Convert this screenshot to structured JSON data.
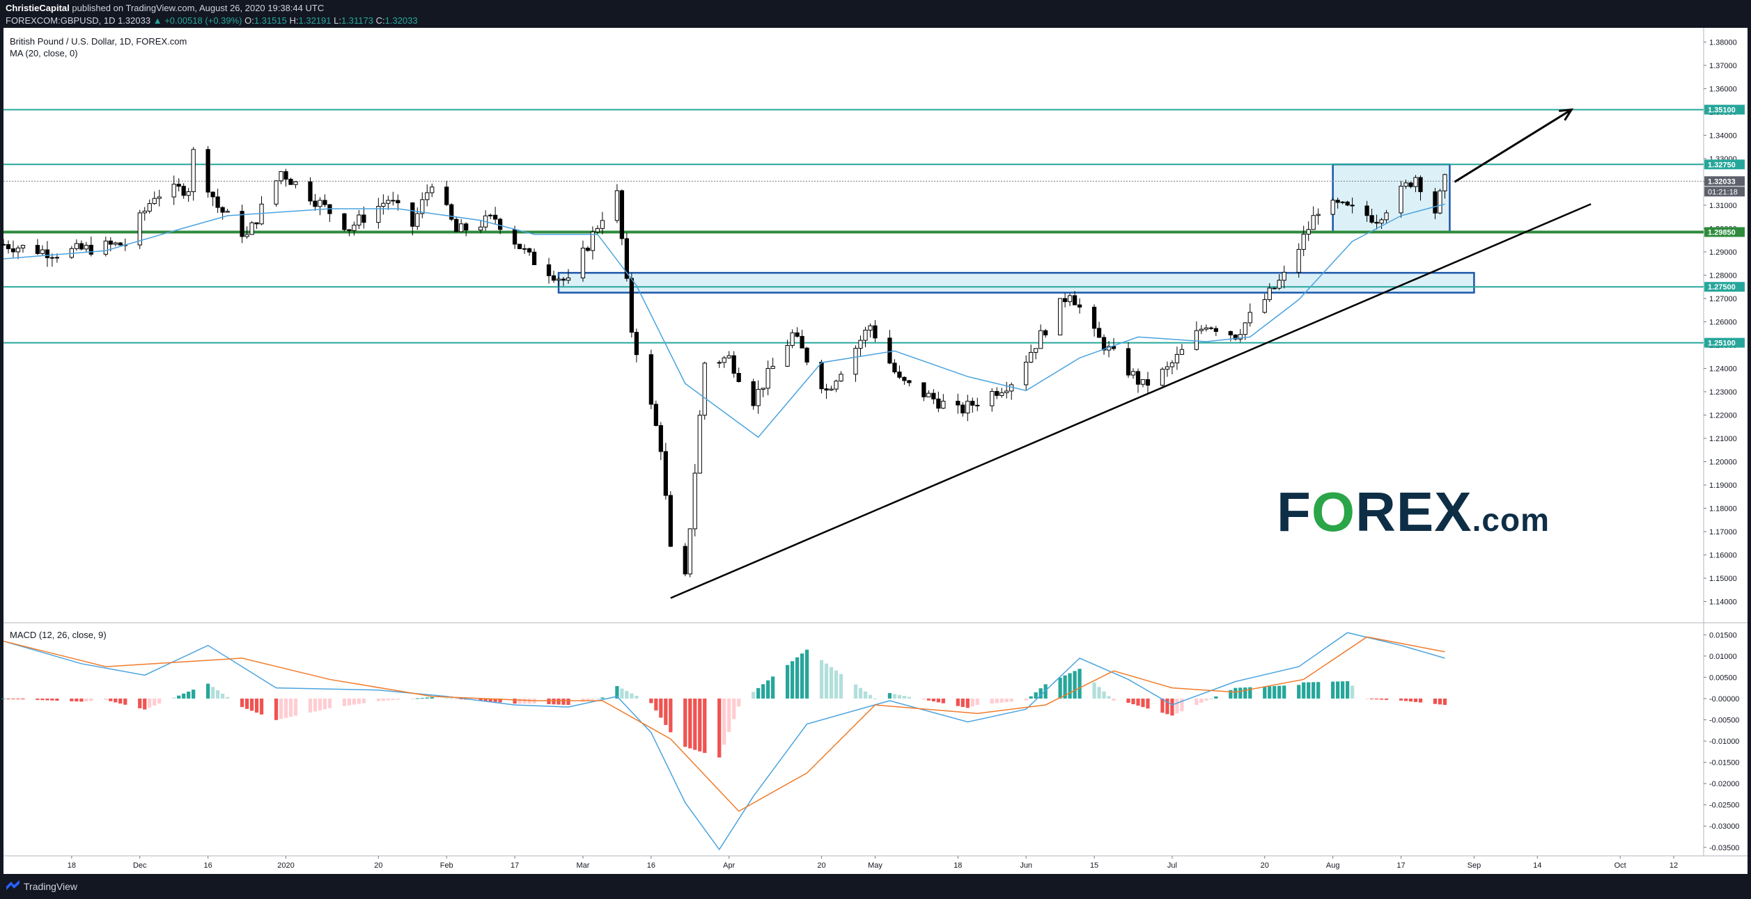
{
  "header": {
    "publisher": "ChristieCapital",
    "published_text": "published on TradingView.com, August 26, 2020 19:38:44 UTC",
    "symbol": "FOREXCOM:GBPUSD, 1D",
    "last": "1.32033",
    "change": "▲ +0.00518 (+0.39%)",
    "o_label": "O:",
    "o": "1.31515",
    "h_label": "H:",
    "h": "1.32191",
    "l_label": "L:",
    "l": "1.31173",
    "c_label": "C:",
    "c": "1.32033"
  },
  "legend": {
    "title": "British Pound / U.S. Dollar, 1D, FOREX.com",
    "ma": "MA (20, close, 0)",
    "macd": "MACD (12, 26, close, 9)"
  },
  "footer": {
    "brand": "TradingView"
  },
  "watermark": {
    "fx": "F",
    "o": "O",
    "rex": "REX",
    "com": ".com"
  },
  "colors": {
    "up": "#ffffff",
    "down": "#000000",
    "ma": "#4aa3df",
    "level": "#26a69a",
    "support": "#2e8b3c",
    "box_fill": "#bfe3f2",
    "box_stroke": "#1a56a8",
    "macd_line": "#4aa3df",
    "signal_line": "#f07b2a",
    "hist_pos_strong": "#26a69a",
    "hist_pos_weak": "#b2dfdb",
    "hist_neg_strong": "#ef5350",
    "hist_neg_weak": "#ffcdd2"
  },
  "chart_data": {
    "type": "candlestick",
    "title": "British Pound / U.S. Dollar, 1D, FOREX.com",
    "price_axis": {
      "ylim": [
        1.1315,
        1.3843
      ],
      "ticks": [
        "1.38000",
        "1.37000",
        "1.36000",
        "1.35000",
        "1.34000",
        "1.33000",
        "1.32000",
        "1.31000",
        "1.30000",
        "1.29000",
        "1.28000",
        "1.27000",
        "1.26000",
        "1.25000",
        "1.24000",
        "1.23000",
        "1.22000",
        "1.21000",
        "1.20000",
        "1.19000",
        "1.18000",
        "1.17000",
        "1.16000",
        "1.15000",
        "1.14000"
      ]
    },
    "time_axis": {
      "ticks": [
        {
          "label": "18",
          "x": "2019-11-18"
        },
        {
          "label": "Dec",
          "x": "2019-12-02"
        },
        {
          "label": "16",
          "x": "2019-12-16"
        },
        {
          "label": "2020",
          "x": "2020-01-01"
        },
        {
          "label": "20",
          "x": "2020-01-20"
        },
        {
          "label": "Feb",
          "x": "2020-02-03"
        },
        {
          "label": "17",
          "x": "2020-02-17"
        },
        {
          "label": "Mar",
          "x": "2020-03-02"
        },
        {
          "label": "16",
          "x": "2020-03-16"
        },
        {
          "label": "Apr",
          "x": "2020-04-01"
        },
        {
          "label": "20",
          "x": "2020-04-20"
        },
        {
          "label": "May",
          "x": "2020-05-01"
        },
        {
          "label": "18",
          "x": "2020-05-18"
        },
        {
          "label": "Jun",
          "x": "2020-06-01"
        },
        {
          "label": "15",
          "x": "2020-06-15"
        },
        {
          "label": "Jul",
          "x": "2020-07-01"
        },
        {
          "label": "20",
          "x": "2020-07-20"
        },
        {
          "label": "Aug",
          "x": "2020-08-03"
        },
        {
          "label": "17",
          "x": "2020-08-17"
        },
        {
          "label": "Sep",
          "x": "2020-09-01"
        },
        {
          "label": "14",
          "x": "2020-09-14"
        },
        {
          "label": "Oct",
          "x": "2020-10-01"
        },
        {
          "label": "12",
          "x": "2020-10-12"
        }
      ],
      "xlim": [
        "2019-11-04",
        "2020-10-18"
      ]
    },
    "levels": [
      {
        "price": 1.351,
        "label": "1.35100",
        "style": "resistance"
      },
      {
        "price": 1.3275,
        "label": "1.32750",
        "style": "resistance"
      },
      {
        "price": 1.2985,
        "label": "1.29850",
        "style": "support"
      },
      {
        "price": 1.275,
        "label": "1.27500",
        "style": "resistance"
      },
      {
        "price": 1.251,
        "label": "1.25100",
        "style": "resistance"
      }
    ],
    "last_price": {
      "price": 1.32033,
      "label": "1.32033",
      "countdown": "01:21:18"
    },
    "boxes": [
      {
        "x0": "2020-02-26",
        "x1": "2020-09-01",
        "y0": 1.2725,
        "y1": 1.281
      },
      {
        "x0": "2020-08-03",
        "x1": "2020-08-27",
        "y0": 1.2985,
        "y1": 1.3275
      }
    ],
    "trendline": {
      "x0": "2020-03-20",
      "y0": 1.1415,
      "x1": "2020-09-25",
      "y1": 1.3105
    },
    "arrow": {
      "x0": "2020-08-28",
      "y0": 1.32,
      "x1": "2020-09-21",
      "y1": 1.351
    },
    "anchors": [
      {
        "x": "2019-11-04",
        "p": 1.2932
      },
      {
        "x": "2019-11-15",
        "p": 1.2895
      },
      {
        "x": "2019-11-29",
        "p": 1.2935
      },
      {
        "x": "2019-12-05",
        "p": 1.3145
      },
      {
        "x": "2019-12-12",
        "p": 1.3175
      },
      {
        "x": "2019-12-13",
        "p": 1.3325
      },
      {
        "x": "2019-12-18",
        "p": 1.3093
      },
      {
        "x": "2019-12-24",
        "p": 1.2965
      },
      {
        "x": "2019-12-31",
        "p": 1.3245
      },
      {
        "x": "2020-01-14",
        "p": 1.3003
      },
      {
        "x": "2020-01-22",
        "p": 1.3126
      },
      {
        "x": "2020-01-27",
        "p": 1.3013
      },
      {
        "x": "2020-01-31",
        "p": 1.3205
      },
      {
        "x": "2020-02-05",
        "p": 1.2985
      },
      {
        "x": "2020-02-13",
        "p": 1.3045
      },
      {
        "x": "2020-02-20",
        "p": 1.2875
      },
      {
        "x": "2020-02-28",
        "p": 1.2765
      },
      {
        "x": "2020-03-06",
        "p": 1.3055
      },
      {
        "x": "2020-03-09",
        "p": 1.3145
      },
      {
        "x": "2020-03-12",
        "p": 1.2565
      },
      {
        "x": "2020-03-18",
        "p": 1.2065
      },
      {
        "x": "2020-03-20",
        "p": 1.1615
      },
      {
        "x": "2020-03-23",
        "p": 1.1495
      },
      {
        "x": "2020-03-27",
        "p": 1.2425
      },
      {
        "x": "2020-04-01",
        "p": 1.2445
      },
      {
        "x": "2020-04-06",
        "p": 1.2265
      },
      {
        "x": "2020-04-14",
        "p": 1.2545
      },
      {
        "x": "2020-04-21",
        "p": 1.2305
      },
      {
        "x": "2020-04-30",
        "p": 1.2585
      },
      {
        "x": "2020-05-06",
        "p": 1.2345
      },
      {
        "x": "2020-05-18",
        "p": 1.2215
      },
      {
        "x": "2020-05-20",
        "p": 1.2235
      },
      {
        "x": "2020-05-29",
        "p": 1.2345
      },
      {
        "x": "2020-06-10",
        "p": 1.2735
      },
      {
        "x": "2020-06-15",
        "p": 1.2545
      },
      {
        "x": "2020-06-25",
        "p": 1.2325
      },
      {
        "x": "2020-06-30",
        "p": 1.2395
      },
      {
        "x": "2020-07-08",
        "p": 1.2595
      },
      {
        "x": "2020-07-14",
        "p": 1.2545
      },
      {
        "x": "2020-07-24",
        "p": 1.2795
      },
      {
        "x": "2020-07-31",
        "p": 1.3085
      },
      {
        "x": "2020-08-04",
        "p": 1.3095
      },
      {
        "x": "2020-08-12",
        "p": 1.3045
      },
      {
        "x": "2020-08-20",
        "p": 1.3225
      },
      {
        "x": "2020-08-24",
        "p": 1.3075
      },
      {
        "x": "2020-08-26",
        "p": 1.32033
      }
    ],
    "ma": {
      "period": 20,
      "points": [
        {
          "x": "2019-11-04",
          "p": 1.287
        },
        {
          "x": "2019-11-25",
          "p": 1.2905
        },
        {
          "x": "2019-12-09",
          "p": 1.299
        },
        {
          "x": "2019-12-20",
          "p": 1.3055
        },
        {
          "x": "2020-01-10",
          "p": 1.3085
        },
        {
          "x": "2020-01-24",
          "p": 1.3085
        },
        {
          "x": "2020-02-10",
          "p": 1.3035
        },
        {
          "x": "2020-02-21",
          "p": 1.2975
        },
        {
          "x": "2020-03-05",
          "p": 1.2975
        },
        {
          "x": "2020-03-13",
          "p": 1.2755
        },
        {
          "x": "2020-03-23",
          "p": 1.2335
        },
        {
          "x": "2020-04-07",
          "p": 1.2105
        },
        {
          "x": "2020-04-20",
          "p": 1.2425
        },
        {
          "x": "2020-05-05",
          "p": 1.2475
        },
        {
          "x": "2020-05-20",
          "p": 1.2365
        },
        {
          "x": "2020-06-01",
          "p": 1.2305
        },
        {
          "x": "2020-06-12",
          "p": 1.2445
        },
        {
          "x": "2020-06-24",
          "p": 1.2535
        },
        {
          "x": "2020-07-08",
          "p": 1.2515
        },
        {
          "x": "2020-07-17",
          "p": 1.2535
        },
        {
          "x": "2020-07-27",
          "p": 1.2695
        },
        {
          "x": "2020-08-07",
          "p": 1.2945
        },
        {
          "x": "2020-08-17",
          "p": 1.3055
        },
        {
          "x": "2020-08-26",
          "p": 1.3105
        }
      ]
    },
    "macd_panel": {
      "ylim": [
        -0.037,
        0.0175
      ],
      "ticks": [
        "0.01500",
        "0.01000",
        "0.00500",
        "-0.00000",
        "-0.00500",
        "-0.01000",
        "-0.01500",
        "-0.02000",
        "-0.02500",
        "-0.03000",
        "-0.03500"
      ],
      "macd": [
        {
          "x": "2019-11-04",
          "v": 0.0135
        },
        {
          "x": "2019-11-20",
          "v": 0.0082
        },
        {
          "x": "2019-12-03",
          "v": 0.0055
        },
        {
          "x": "2019-12-16",
          "v": 0.0125
        },
        {
          "x": "2019-12-30",
          "v": 0.0025
        },
        {
          "x": "2020-01-20",
          "v": 0.002
        },
        {
          "x": "2020-02-03",
          "v": 0.0005
        },
        {
          "x": "2020-02-17",
          "v": -0.0015
        },
        {
          "x": "2020-02-28",
          "v": -0.002
        },
        {
          "x": "2020-03-09",
          "v": 0.0005
        },
        {
          "x": "2020-03-16",
          "v": -0.008
        },
        {
          "x": "2020-03-23",
          "v": -0.0245
        },
        {
          "x": "2020-03-30",
          "v": -0.0355
        },
        {
          "x": "2020-04-06",
          "v": -0.023
        },
        {
          "x": "2020-04-17",
          "v": -0.006
        },
        {
          "x": "2020-05-04",
          "v": -0.0005
        },
        {
          "x": "2020-05-20",
          "v": -0.0055
        },
        {
          "x": "2020-06-01",
          "v": -0.0025
        },
        {
          "x": "2020-06-12",
          "v": 0.0095
        },
        {
          "x": "2020-06-22",
          "v": 0.0045
        },
        {
          "x": "2020-07-01",
          "v": -0.0015
        },
        {
          "x": "2020-07-14",
          "v": 0.004
        },
        {
          "x": "2020-07-27",
          "v": 0.0075
        },
        {
          "x": "2020-08-06",
          "v": 0.0155
        },
        {
          "x": "2020-08-17",
          "v": 0.0125
        },
        {
          "x": "2020-08-26",
          "v": 0.0095
        }
      ],
      "signal": [
        {
          "x": "2019-11-04",
          "v": 0.0135
        },
        {
          "x": "2019-11-25",
          "v": 0.0075
        },
        {
          "x": "2019-12-09",
          "v": 0.0085
        },
        {
          "x": "2019-12-23",
          "v": 0.0095
        },
        {
          "x": "2020-01-10",
          "v": 0.0045
        },
        {
          "x": "2020-01-31",
          "v": 0.0005
        },
        {
          "x": "2020-02-21",
          "v": -0.0005
        },
        {
          "x": "2020-03-06",
          "v": -0.0005
        },
        {
          "x": "2020-03-20",
          "v": -0.0095
        },
        {
          "x": "2020-04-03",
          "v": -0.0265
        },
        {
          "x": "2020-04-17",
          "v": -0.0175
        },
        {
          "x": "2020-05-01",
          "v": -0.0015
        },
        {
          "x": "2020-05-22",
          "v": -0.0035
        },
        {
          "x": "2020-06-05",
          "v": -0.0015
        },
        {
          "x": "2020-06-19",
          "v": 0.0065
        },
        {
          "x": "2020-07-01",
          "v": 0.0025
        },
        {
          "x": "2020-07-14",
          "v": 0.0015
        },
        {
          "x": "2020-07-28",
          "v": 0.0045
        },
        {
          "x": "2020-08-10",
          "v": 0.0145
        },
        {
          "x": "2020-08-26",
          "v": 0.011
        }
      ]
    }
  }
}
